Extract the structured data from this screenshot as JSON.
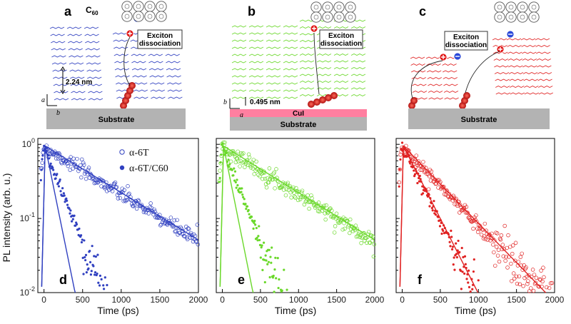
{
  "figure": {
    "top_panels": [
      {
        "label": "a",
        "substrate": "Substrate",
        "exciton_box": [
          "Exciton",
          "dissociation"
        ],
        "dimension": "2.24 nm",
        "acceptor": "C60",
        "axes": [
          "a",
          "b"
        ]
      },
      {
        "label": "b",
        "substrate": "Substrate",
        "interlayer": "CuI",
        "exciton_box": [
          "Exciton",
          "dissociation"
        ],
        "dimension": "0.495 nm",
        "axes": [
          "b",
          "a"
        ]
      },
      {
        "label": "c",
        "substrate": "Substrate",
        "exciton_box": [
          "Exciton",
          "dissociation"
        ]
      }
    ],
    "shared": {
      "ylabel": "PL intensity (arb. u.)",
      "xlabel": "Time (ps)",
      "legend": [
        "α-6T",
        "α-6T/C60"
      ]
    },
    "colors": {
      "blue": "#3040c0",
      "green": "#6ad82a",
      "red": "#e02222",
      "substrate": "#b3b3b3",
      "cui": "#ff7fa0"
    }
  },
  "chart_data": [
    {
      "type": "scatter",
      "panel_label": "d",
      "xlabel": "Time (ps)",
      "ylabel": "PL intensity (arb. u.)",
      "xlim": [
        -80,
        2000
      ],
      "ylim": [
        0.01,
        1.2
      ],
      "yscale": "log",
      "xticks": [
        0,
        500,
        1000,
        1500,
        2000
      ],
      "yticks": [
        {
          "v": 1,
          "t": "10^0"
        },
        {
          "v": 0.1,
          "t": "10^-1"
        },
        {
          "v": 0.01,
          "t": "10^-2"
        }
      ],
      "series": [
        {
          "name": "α-6T",
          "style": "open",
          "fit_tau": 680,
          "noise_max_t": 2000
        },
        {
          "name": "α-6T/C60",
          "style": "filled",
          "fit_tau": 85,
          "data_tau": 170,
          "noise_max_t": 1000
        }
      ]
    },
    {
      "type": "scatter",
      "panel_label": "e",
      "xlabel": "Time (ps)",
      "xlim": [
        -80,
        2000
      ],
      "ylim": [
        0.01,
        1.2
      ],
      "yscale": "log",
      "series": [
        {
          "name": "α-6T",
          "style": "open",
          "fit_tau": 680,
          "noise_max_t": 2000
        },
        {
          "name": "α-6T/C60",
          "style": "filled",
          "fit_tau": 85,
          "data_tau": 170,
          "noise_max_t": 1150
        }
      ]
    },
    {
      "type": "scatter",
      "panel_label": "f",
      "xlabel": "Time (ps)",
      "xlim": [
        -80,
        2000
      ],
      "ylim": [
        0.01,
        1.2
      ],
      "yscale": "log",
      "series": [
        {
          "name": "α-6T",
          "style": "open",
          "fit_tau": 410,
          "noise_max_t": 2000
        },
        {
          "name": "α-6T/C60",
          "style": "filled",
          "fit_tau": 215,
          "data_tau": 215,
          "noise_max_t": 1000
        }
      ]
    }
  ]
}
